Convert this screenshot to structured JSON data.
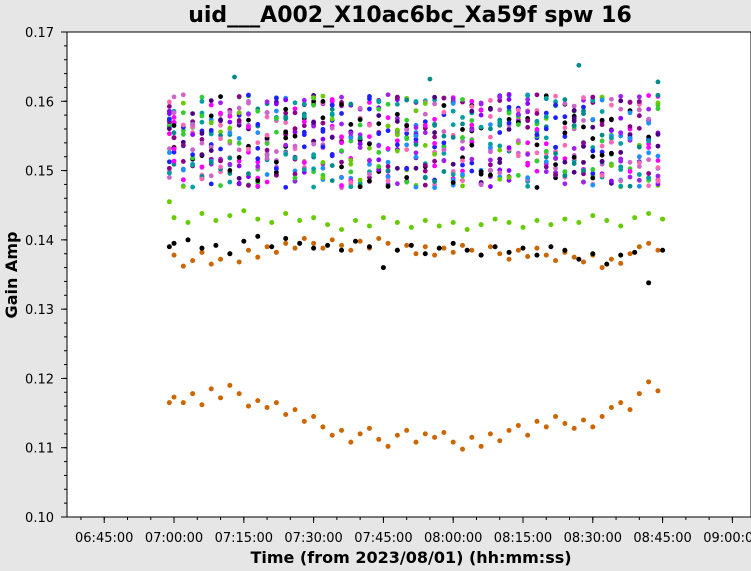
{
  "chart_data": {
    "type": "scatter",
    "title": "uid___A002_X10ac6bc_Xa59f spw 16",
    "xlabel": "Time (from 2023/08/01) (hh:mm:ss)",
    "ylabel": "Gain Amp",
    "xlim": [
      "06:37:00",
      "09:04:00"
    ],
    "ylim": [
      0.1,
      0.17
    ],
    "xticks": [
      "06:45:00",
      "07:00:00",
      "07:15:00",
      "07:30:00",
      "07:45:00",
      "08:00:00",
      "08:15:00",
      "08:30:00",
      "08:45:00",
      "09:00:00"
    ],
    "yticks": [
      "0.10",
      "0.11",
      "0.12",
      "0.13",
      "0.14",
      "0.15",
      "0.16",
      "0.17"
    ],
    "grid": false,
    "legend": "none",
    "colors": {
      "background": "#e6e6e6",
      "plot_area": "#ffffff",
      "series_palette": [
        "#000000",
        "#008b8b",
        "#8b00ff",
        "#ff00ff",
        "#00a0a0",
        "#2020ff",
        "#cc66cc",
        "#1e90ff",
        "#66cc00",
        "#33cc33",
        "#a020f0",
        "#8b008b",
        "#ff69b4",
        "#4b0082"
      ]
    },
    "series": [
      {
        "color": "#cc6600",
        "x": [
          "07:00:00",
          "07:02:00",
          "07:04:00",
          "07:06:00",
          "07:08:00",
          "07:10:00",
          "07:12:00",
          "07:14:00",
          "07:16:00",
          "07:18:00",
          "07:20:00",
          "07:22:00",
          "07:24:00",
          "07:26:00",
          "07:28:00",
          "07:30:00",
          "07:32:00",
          "07:34:00",
          "07:36:00",
          "07:38:00",
          "07:40:00",
          "07:42:00",
          "07:44:00",
          "07:46:00",
          "07:48:00",
          "07:50:00",
          "07:52:00",
          "07:54:00",
          "07:56:00",
          "07:58:00",
          "08:00:00",
          "08:02:00",
          "08:04:00",
          "08:06:00",
          "08:08:00",
          "08:10:00",
          "08:12:00",
          "08:14:00",
          "08:16:00",
          "08:18:00",
          "08:20:00",
          "08:22:00",
          "08:24:00",
          "08:26:00",
          "08:28:00",
          "08:30:00",
          "08:32:00",
          "08:34:00",
          "08:36:00",
          "08:38:00",
          "08:40:00",
          "08:42:00",
          "08:44:00"
        ],
        "y": [
          0.1173,
          0.1165,
          0.1178,
          0.1162,
          0.1185,
          0.1172,
          0.119,
          0.1178,
          0.116,
          0.1168,
          0.1158,
          0.1165,
          0.1148,
          0.1155,
          0.1138,
          0.1145,
          0.113,
          0.1118,
          0.1125,
          0.1108,
          0.112,
          0.1128,
          0.1112,
          0.1102,
          0.1118,
          0.1125,
          0.1108,
          0.112,
          0.1115,
          0.1122,
          0.1108,
          0.1098,
          0.1115,
          0.1102,
          0.112,
          0.111,
          0.1125,
          0.1132,
          0.1118,
          0.1138,
          0.113,
          0.1145,
          0.1135,
          0.1128,
          0.114,
          0.113,
          0.1145,
          0.1158,
          0.1165,
          0.1155,
          0.1178,
          0.1195,
          0.1182
        ]
      },
      {
        "color": "#cc6600",
        "x": [
          "07:00:00",
          "07:02:00",
          "07:04:00",
          "07:06:00",
          "07:08:00",
          "07:10:00",
          "07:12:00",
          "07:14:00",
          "07:16:00",
          "07:18:00",
          "07:20:00",
          "07:22:00",
          "07:24:00",
          "07:26:00",
          "07:28:00",
          "07:30:00",
          "07:32:00",
          "07:34:00",
          "07:36:00",
          "07:38:00",
          "07:40:00",
          "07:42:00",
          "07:44:00",
          "07:46:00",
          "07:48:00",
          "07:50:00",
          "07:52:00",
          "07:54:00",
          "07:56:00",
          "07:58:00",
          "08:00:00",
          "08:02:00",
          "08:04:00",
          "08:06:00",
          "08:08:00",
          "08:10:00",
          "08:12:00",
          "08:14:00",
          "08:16:00",
          "08:18:00",
          "08:20:00",
          "08:22:00",
          "08:24:00",
          "08:26:00",
          "08:28:00",
          "08:30:00",
          "08:32:00",
          "08:34:00",
          "08:36:00",
          "08:38:00",
          "08:40:00",
          "08:42:00",
          "08:44:00"
        ],
        "y": [
          0.1378,
          0.1362,
          0.137,
          0.1382,
          0.1365,
          0.1372,
          0.138,
          0.1368,
          0.1385,
          0.1375,
          0.139,
          0.1382,
          0.1395,
          0.1388,
          0.1402,
          0.1395,
          0.1388,
          0.14,
          0.1392,
          0.1385,
          0.1398,
          0.1388,
          0.1402,
          0.1395,
          0.1385,
          0.1392,
          0.138,
          0.139,
          0.1378,
          0.1388,
          0.1382,
          0.1392,
          0.1385,
          0.1378,
          0.139,
          0.138,
          0.1372,
          0.1385,
          0.1376,
          0.1388,
          0.1378,
          0.137,
          0.1382,
          0.1375,
          0.1368,
          0.1378,
          0.136,
          0.1372,
          0.1366,
          0.138,
          0.139,
          0.1395,
          0.1385
        ]
      },
      {
        "color": "#000000",
        "x": [
          "07:00:00",
          "07:03:00",
          "07:06:00",
          "07:09:00",
          "07:12:00",
          "07:15:00",
          "07:18:00",
          "07:21:00",
          "07:24:00",
          "07:27:00",
          "07:30:00",
          "07:33:00",
          "07:36:00",
          "07:39:00",
          "07:42:00",
          "07:45:00",
          "07:48:00",
          "07:51:00",
          "07:54:00",
          "07:57:00",
          "08:00:00",
          "08:03:00",
          "08:06:00",
          "08:09:00",
          "08:12:00",
          "08:15:00",
          "08:18:00",
          "08:21:00",
          "08:24:00",
          "08:27:00",
          "08:30:00",
          "08:33:00",
          "08:36:00",
          "08:39:00",
          "08:42:00",
          "08:45:00"
        ],
        "y": [
          0.1395,
          0.14,
          0.1388,
          0.1392,
          0.138,
          0.1398,
          0.1405,
          0.139,
          0.1402,
          0.1395,
          0.1388,
          0.1392,
          0.1385,
          0.1398,
          0.139,
          0.136,
          0.1385,
          0.1392,
          0.138,
          0.1388,
          0.1395,
          0.1385,
          0.1378,
          0.139,
          0.1382,
          0.1388,
          0.1378,
          0.139,
          0.1385,
          0.1372,
          0.138,
          0.1365,
          0.1378,
          0.1382,
          0.1338,
          0.1385
        ]
      },
      {
        "color": "#66cc00",
        "x": [
          "07:00:00",
          "07:03:00",
          "07:06:00",
          "07:09:00",
          "07:12:00",
          "07:15:00",
          "07:18:00",
          "07:21:00",
          "07:24:00",
          "07:27:00",
          "07:30:00",
          "07:33:00",
          "07:36:00",
          "07:39:00",
          "07:42:00",
          "07:45:00",
          "07:48:00",
          "07:51:00",
          "07:54:00",
          "07:57:00",
          "08:00:00",
          "08:03:00",
          "08:06:00",
          "08:09:00",
          "08:12:00",
          "08:15:00",
          "08:18:00",
          "08:21:00",
          "08:24:00",
          "08:27:00",
          "08:30:00",
          "08:33:00",
          "08:36:00",
          "08:39:00",
          "08:42:00",
          "08:45:00"
        ],
        "y": [
          0.1432,
          0.1425,
          0.1438,
          0.1428,
          0.1435,
          0.1442,
          0.143,
          0.1425,
          0.1438,
          0.1428,
          0.1432,
          0.1422,
          0.1415,
          0.1428,
          0.142,
          0.1432,
          0.1425,
          0.1418,
          0.1428,
          0.142,
          0.1425,
          0.1415,
          0.1422,
          0.143,
          0.1425,
          0.1418,
          0.1428,
          0.1422,
          0.143,
          0.1425,
          0.1435,
          0.1428,
          0.142,
          0.1432,
          0.1438,
          0.143
        ]
      }
    ]
  }
}
